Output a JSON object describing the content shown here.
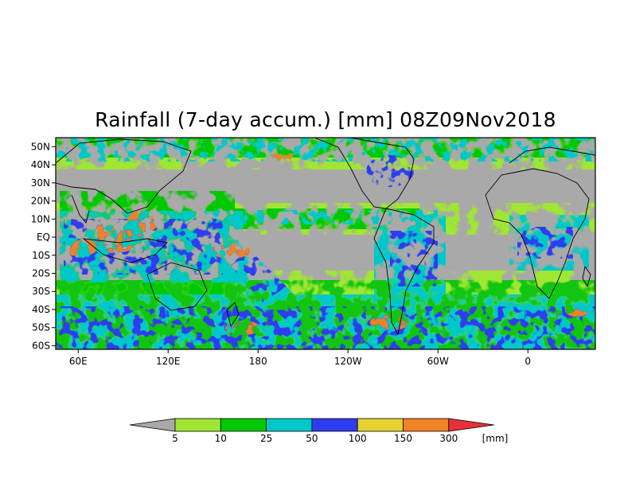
{
  "title": "Rainfall (7-day accum.) [mm] 08Z09Nov2018",
  "map": {
    "projection": "cylindrical-equidistant",
    "lon_range": [
      45,
      405
    ],
    "lat_range": [
      -62,
      55
    ],
    "no_rain_color": "#a9a9a9",
    "lat_ticks": [
      {
        "label": "50N",
        "lat": 50
      },
      {
        "label": "40N",
        "lat": 40
      },
      {
        "label": "30N",
        "lat": 30
      },
      {
        "label": "20N",
        "lat": 20
      },
      {
        "label": "10N",
        "lat": 10
      },
      {
        "label": "EQ",
        "lat": 0
      },
      {
        "label": "10S",
        "lat": -10
      },
      {
        "label": "20S",
        "lat": -20
      },
      {
        "label": "30S",
        "lat": -30
      },
      {
        "label": "40S",
        "lat": -40
      },
      {
        "label": "50S",
        "lat": -50
      },
      {
        "label": "60S",
        "lat": -60
      }
    ],
    "lon_ticks": [
      {
        "label": "60E",
        "lon": 60
      },
      {
        "label": "120E",
        "lon": 120
      },
      {
        "label": "180",
        "lon": 180
      },
      {
        "label": "120W",
        "lon": 240
      },
      {
        "label": "60W",
        "lon": 300
      },
      {
        "label": "0",
        "lon": 360
      }
    ]
  },
  "colorbar": {
    "unit": "[mm]",
    "under_color": "#a9a9a9",
    "over_color": "#e8303a",
    "bins": [
      {
        "color": "#a0e632"
      },
      {
        "color": "#00c800"
      },
      {
        "color": "#00c8c8"
      },
      {
        "color": "#2e3cf0"
      },
      {
        "color": "#e6d232"
      },
      {
        "color": "#f08228"
      }
    ],
    "labels": [
      "5",
      "10",
      "25",
      "50",
      "100",
      "150",
      "300"
    ]
  }
}
